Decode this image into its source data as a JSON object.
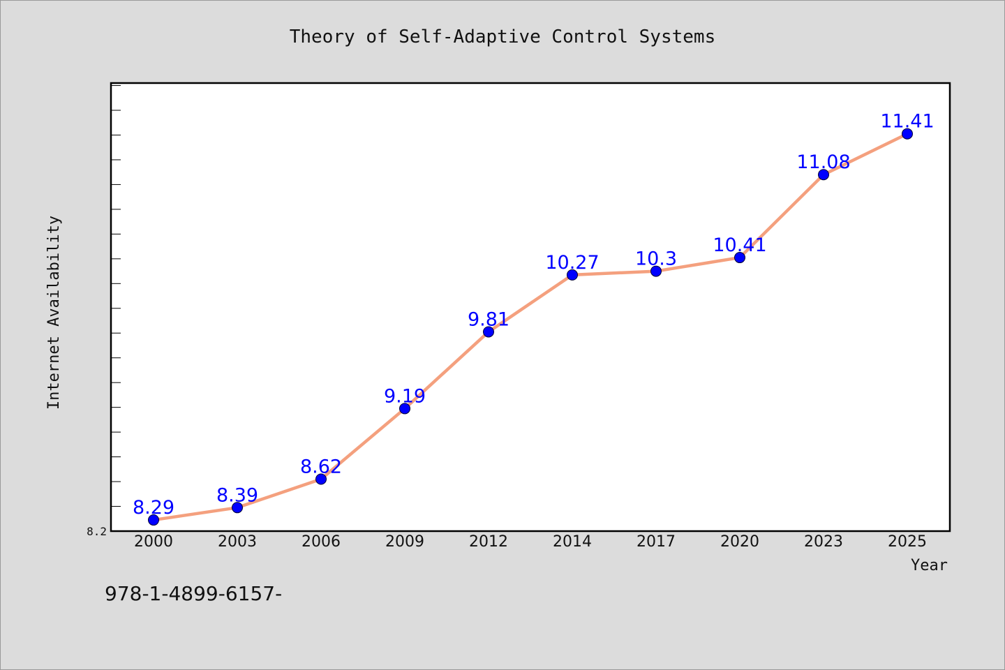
{
  "chart_data": {
    "type": "line",
    "title": "Theory of Self-Adaptive Control Systems",
    "xlabel": "Year",
    "ylabel": "Internet Availability",
    "categories": [
      "2000",
      "2003",
      "2006",
      "2009",
      "2012",
      "2014",
      "2017",
      "2020",
      "2023",
      "2025"
    ],
    "series": [
      {
        "values": [
          8.29,
          8.39,
          8.62,
          9.19,
          9.81,
          10.27,
          10.3,
          10.41,
          11.08,
          11.41
        ],
        "data_labels": [
          "8.29",
          "8.39",
          "8.62",
          "9.19",
          "9.81",
          "10.27",
          "10.3",
          "10.41",
          "11.08",
          "11.41"
        ]
      }
    ],
    "y_tick_labels": [
      {
        "value": 8.2,
        "label": "8.2"
      }
    ],
    "ylim": [
      8.2,
      11.82
    ],
    "grid": false,
    "colors": {
      "line": "#f4a07e",
      "marker": "#0000ff",
      "data_label": "#0000ff",
      "plot_background": "#ffffff",
      "figure_background": "#dcdcdc"
    }
  },
  "footer": {
    "text": "978-1-4899-6157-"
  }
}
